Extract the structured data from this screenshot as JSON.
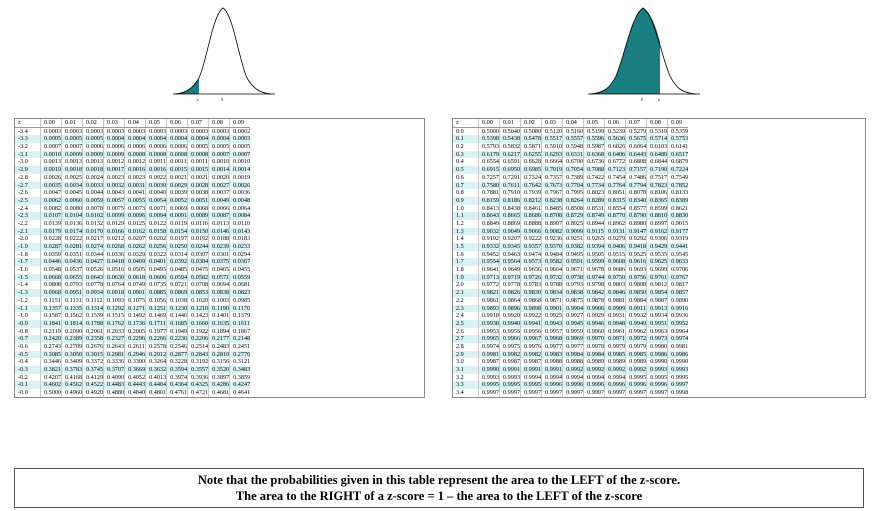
{
  "header_row": [
    "z",
    "0.00",
    "0.01",
    "0.02",
    "0.03",
    "0.04",
    "0.05",
    "0.06",
    "0.07",
    "0.08",
    "0.09"
  ],
  "curve_labels": {
    "left_z": "z",
    "left_zero": "0",
    "right_zero": "0",
    "right_z": "z"
  },
  "colors": {
    "fill": "#1a7d80",
    "row_shade": "#d8f3f5"
  },
  "left_table": [
    [
      "-3.4",
      "0.0003",
      "0.0003",
      "0.0003",
      "0.0003",
      "0.0003",
      "0.0003",
      "0.0003",
      "0.0003",
      "0.0003",
      "0.0002"
    ],
    [
      "-3.3",
      "0.0005",
      "0.0005",
      "0.0005",
      "0.0004",
      "0.0004",
      "0.0004",
      "0.0004",
      "0.0004",
      "0.0004",
      "0.0003"
    ],
    [
      "-3.2",
      "0.0007",
      "0.0007",
      "0.0006",
      "0.0006",
      "0.0006",
      "0.0006",
      "0.0006",
      "0.0005",
      "0.0005",
      "0.0005"
    ],
    [
      "-3.1",
      "0.0010",
      "0.0009",
      "0.0009",
      "0.0009",
      "0.0008",
      "0.0008",
      "0.0008",
      "0.0008",
      "0.0007",
      "0.0007"
    ],
    [
      "-3.0",
      "0.0013",
      "0.0013",
      "0.0013",
      "0.0012",
      "0.0012",
      "0.0011",
      "0.0011",
      "0.0011",
      "0.0010",
      "0.0010"
    ],
    [
      "-2.9",
      "0.0019",
      "0.0018",
      "0.0018",
      "0.0017",
      "0.0016",
      "0.0016",
      "0.0015",
      "0.0015",
      "0.0014",
      "0.0014"
    ],
    [
      "-2.8",
      "0.0026",
      "0.0025",
      "0.0024",
      "0.0023",
      "0.0023",
      "0.0022",
      "0.0021",
      "0.0021",
      "0.0020",
      "0.0019"
    ],
    [
      "-2.7",
      "0.0035",
      "0.0034",
      "0.0033",
      "0.0032",
      "0.0031",
      "0.0030",
      "0.0029",
      "0.0028",
      "0.0027",
      "0.0026"
    ],
    [
      "-2.6",
      "0.0047",
      "0.0045",
      "0.0044",
      "0.0043",
      "0.0041",
      "0.0040",
      "0.0039",
      "0.0038",
      "0.0037",
      "0.0036"
    ],
    [
      "-2.5",
      "0.0062",
      "0.0060",
      "0.0059",
      "0.0057",
      "0.0055",
      "0.0054",
      "0.0052",
      "0.0051",
      "0.0049",
      "0.0048"
    ],
    [
      "-2.4",
      "0.0082",
      "0.0080",
      "0.0078",
      "0.0075",
      "0.0073",
      "0.0071",
      "0.0069",
      "0.0068",
      "0.0066",
      "0.0064"
    ],
    [
      "-2.3",
      "0.0107",
      "0.0104",
      "0.0102",
      "0.0099",
      "0.0096",
      "0.0094",
      "0.0091",
      "0.0089",
      "0.0087",
      "0.0084"
    ],
    [
      "-2.2",
      "0.0139",
      "0.0136",
      "0.0132",
      "0.0129",
      "0.0125",
      "0.0122",
      "0.0119",
      "0.0116",
      "0.0113",
      "0.0110"
    ],
    [
      "-2.1",
      "0.0179",
      "0.0174",
      "0.0170",
      "0.0166",
      "0.0162",
      "0.0158",
      "0.0154",
      "0.0150",
      "0.0146",
      "0.0143"
    ],
    [
      "-2.0",
      "0.0228",
      "0.0222",
      "0.0217",
      "0.0212",
      "0.0207",
      "0.0202",
      "0.0197",
      "0.0192",
      "0.0188",
      "0.0183"
    ],
    [
      "-1.9",
      "0.0287",
      "0.0281",
      "0.0274",
      "0.0268",
      "0.0262",
      "0.0256",
      "0.0250",
      "0.0244",
      "0.0239",
      "0.0233"
    ],
    [
      "-1.8",
      "0.0359",
      "0.0351",
      "0.0344",
      "0.0336",
      "0.0329",
      "0.0322",
      "0.0314",
      "0.0307",
      "0.0301",
      "0.0294"
    ],
    [
      "-1.7",
      "0.0446",
      "0.0436",
      "0.0427",
      "0.0418",
      "0.0409",
      "0.0401",
      "0.0392",
      "0.0384",
      "0.0375",
      "0.0367"
    ],
    [
      "-1.6",
      "0.0548",
      "0.0537",
      "0.0526",
      "0.0516",
      "0.0505",
      "0.0495",
      "0.0485",
      "0.0475",
      "0.0465",
      "0.0455"
    ],
    [
      "-1.5",
      "0.0668",
      "0.0655",
      "0.0643",
      "0.0630",
      "0.0618",
      "0.0606",
      "0.0594",
      "0.0582",
      "0.0571",
      "0.0559"
    ],
    [
      "-1.4",
      "0.0808",
      "0.0793",
      "0.0778",
      "0.0764",
      "0.0749",
      "0.0735",
      "0.0721",
      "0.0708",
      "0.0694",
      "0.0681"
    ],
    [
      "-1.3",
      "0.0968",
      "0.0951",
      "0.0934",
      "0.0918",
      "0.0901",
      "0.0885",
      "0.0869",
      "0.0853",
      "0.0838",
      "0.0823"
    ],
    [
      "-1.2",
      "0.1151",
      "0.1131",
      "0.1112",
      "0.1093",
      "0.1075",
      "0.1056",
      "0.1038",
      "0.1020",
      "0.1003",
      "0.0985"
    ],
    [
      "-1.1",
      "0.1357",
      "0.1335",
      "0.1314",
      "0.1292",
      "0.1271",
      "0.1251",
      "0.1230",
      "0.1210",
      "0.1190",
      "0.1170"
    ],
    [
      "-1.0",
      "0.1587",
      "0.1562",
      "0.1539",
      "0.1515",
      "0.1492",
      "0.1469",
      "0.1446",
      "0.1423",
      "0.1401",
      "0.1379"
    ],
    [
      "-0.9",
      "0.1841",
      "0.1814",
      "0.1788",
      "0.1762",
      "0.1736",
      "0.1711",
      "0.1685",
      "0.1660",
      "0.1635",
      "0.1611"
    ],
    [
      "-0.8",
      "0.2119",
      "0.2090",
      "0.2061",
      "0.2033",
      "0.2005",
      "0.1977",
      "0.1949",
      "0.1922",
      "0.1894",
      "0.1867"
    ],
    [
      "-0.7",
      "0.2420",
      "0.2389",
      "0.2358",
      "0.2327",
      "0.2296",
      "0.2266",
      "0.2236",
      "0.2206",
      "0.2177",
      "0.2148"
    ],
    [
      "-0.6",
      "0.2743",
      "0.2709",
      "0.2676",
      "0.2643",
      "0.2611",
      "0.2578",
      "0.2546",
      "0.2514",
      "0.2483",
      "0.2451"
    ],
    [
      "-0.5",
      "0.3085",
      "0.3050",
      "0.3015",
      "0.2981",
      "0.2946",
      "0.2912",
      "0.2877",
      "0.2843",
      "0.2810",
      "0.2776"
    ],
    [
      "-0.4",
      "0.3446",
      "0.3409",
      "0.3372",
      "0.3336",
      "0.3300",
      "0.3264",
      "0.3228",
      "0.3192",
      "0.3156",
      "0.3121"
    ],
    [
      "-0.3",
      "0.3821",
      "0.3783",
      "0.3745",
      "0.3707",
      "0.3669",
      "0.3632",
      "0.3594",
      "0.3557",
      "0.3520",
      "0.3483"
    ],
    [
      "-0.2",
      "0.4207",
      "0.4168",
      "0.4129",
      "0.4090",
      "0.4052",
      "0.4013",
      "0.3974",
      "0.3936",
      "0.3897",
      "0.3859"
    ],
    [
      "-0.1",
      "0.4602",
      "0.4562",
      "0.4522",
      "0.4483",
      "0.4443",
      "0.4404",
      "0.4364",
      "0.4325",
      "0.4286",
      "0.4247"
    ],
    [
      "-0.0",
      "0.5000",
      "0.4960",
      "0.4920",
      "0.4880",
      "0.4840",
      "0.4801",
      "0.4761",
      "0.4721",
      "0.4681",
      "0.4641"
    ]
  ],
  "right_table": [
    [
      "0.0",
      "0.5000",
      "0.5040",
      "0.5080",
      "0.5120",
      "0.5160",
      "0.5199",
      "0.5239",
      "0.5279",
      "0.5319",
      "0.5359"
    ],
    [
      "0.1",
      "0.5398",
      "0.5438",
      "0.5478",
      "0.5517",
      "0.5557",
      "0.5596",
      "0.5636",
      "0.5675",
      "0.5714",
      "0.5753"
    ],
    [
      "0.2",
      "0.5793",
      "0.5832",
      "0.5871",
      "0.5910",
      "0.5948",
      "0.5987",
      "0.6026",
      "0.6064",
      "0.6103",
      "0.6141"
    ],
    [
      "0.3",
      "0.6179",
      "0.6217",
      "0.6255",
      "0.6293",
      "0.6331",
      "0.6368",
      "0.6406",
      "0.6443",
      "0.6480",
      "0.6517"
    ],
    [
      "0.4",
      "0.6554",
      "0.6591",
      "0.6628",
      "0.6664",
      "0.6700",
      "0.6736",
      "0.6772",
      "0.6808",
      "0.6844",
      "0.6879"
    ],
    [
      "0.5",
      "0.6915",
      "0.6950",
      "0.6985",
      "0.7019",
      "0.7054",
      "0.7088",
      "0.7123",
      "0.7157",
      "0.7190",
      "0.7224"
    ],
    [
      "0.6",
      "0.7257",
      "0.7291",
      "0.7324",
      "0.7357",
      "0.7389",
      "0.7422",
      "0.7454",
      "0.7486",
      "0.7517",
      "0.7549"
    ],
    [
      "0.7",
      "0.7580",
      "0.7611",
      "0.7642",
      "0.7673",
      "0.7704",
      "0.7734",
      "0.7764",
      "0.7794",
      "0.7823",
      "0.7852"
    ],
    [
      "0.8",
      "0.7881",
      "0.7910",
      "0.7939",
      "0.7967",
      "0.7995",
      "0.8023",
      "0.8051",
      "0.8078",
      "0.8106",
      "0.8133"
    ],
    [
      "0.9",
      "0.8159",
      "0.8186",
      "0.8212",
      "0.8238",
      "0.8264",
      "0.8289",
      "0.8315",
      "0.8340",
      "0.8365",
      "0.8389"
    ],
    [
      "1.0",
      "0.8413",
      "0.8438",
      "0.8461",
      "0.8485",
      "0.8508",
      "0.8531",
      "0.8554",
      "0.8577",
      "0.8599",
      "0.8621"
    ],
    [
      "1.1",
      "0.8643",
      "0.8665",
      "0.8686",
      "0.8708",
      "0.8729",
      "0.8749",
      "0.8770",
      "0.8790",
      "0.8810",
      "0.8830"
    ],
    [
      "1.2",
      "0.8849",
      "0.8869",
      "0.8888",
      "0.8907",
      "0.8925",
      "0.8944",
      "0.8962",
      "0.8980",
      "0.8997",
      "0.9015"
    ],
    [
      "1.3",
      "0.9032",
      "0.9049",
      "0.9066",
      "0.9082",
      "0.9099",
      "0.9115",
      "0.9131",
      "0.9147",
      "0.9162",
      "0.9177"
    ],
    [
      "1.4",
      "0.9192",
      "0.9207",
      "0.9222",
      "0.9236",
      "0.9251",
      "0.9265",
      "0.9279",
      "0.9292",
      "0.9306",
      "0.9319"
    ],
    [
      "1.5",
      "0.9332",
      "0.9345",
      "0.9357",
      "0.9370",
      "0.9382",
      "0.9394",
      "0.9406",
      "0.9418",
      "0.9429",
      "0.9441"
    ],
    [
      "1.6",
      "0.9452",
      "0.9463",
      "0.9474",
      "0.9484",
      "0.9495",
      "0.9505",
      "0.9515",
      "0.9525",
      "0.9535",
      "0.9545"
    ],
    [
      "1.7",
      "0.9554",
      "0.9564",
      "0.9573",
      "0.9582",
      "0.9591",
      "0.9599",
      "0.9608",
      "0.9616",
      "0.9625",
      "0.9633"
    ],
    [
      "1.8",
      "0.9641",
      "0.9649",
      "0.9656",
      "0.9664",
      "0.9671",
      "0.9678",
      "0.9686",
      "0.9693",
      "0.9699",
      "0.9706"
    ],
    [
      "1.9",
      "0.9713",
      "0.9719",
      "0.9726",
      "0.9732",
      "0.9738",
      "0.9744",
      "0.9750",
      "0.9756",
      "0.9761",
      "0.9767"
    ],
    [
      "2.0",
      "0.9772",
      "0.9778",
      "0.9783",
      "0.9788",
      "0.9793",
      "0.9798",
      "0.9803",
      "0.9808",
      "0.9812",
      "0.9817"
    ],
    [
      "2.1",
      "0.9821",
      "0.9826",
      "0.9830",
      "0.9834",
      "0.9838",
      "0.9842",
      "0.9846",
      "0.9850",
      "0.9854",
      "0.9857"
    ],
    [
      "2.2",
      "0.9861",
      "0.9864",
      "0.9868",
      "0.9871",
      "0.9875",
      "0.9878",
      "0.9881",
      "0.9884",
      "0.9887",
      "0.9890"
    ],
    [
      "2.3",
      "0.9893",
      "0.9896",
      "0.9898",
      "0.9901",
      "0.9904",
      "0.9906",
      "0.9909",
      "0.9911",
      "0.9913",
      "0.9916"
    ],
    [
      "2.4",
      "0.9918",
      "0.9920",
      "0.9922",
      "0.9925",
      "0.9927",
      "0.9929",
      "0.9931",
      "0.9932",
      "0.9934",
      "0.9936"
    ],
    [
      "2.5",
      "0.9938",
      "0.9940",
      "0.9941",
      "0.9943",
      "0.9945",
      "0.9946",
      "0.9948",
      "0.9949",
      "0.9951",
      "0.9952"
    ],
    [
      "2.6",
      "0.9953",
      "0.9955",
      "0.9956",
      "0.9957",
      "0.9959",
      "0.9960",
      "0.9961",
      "0.9962",
      "0.9963",
      "0.9964"
    ],
    [
      "2.7",
      "0.9965",
      "0.9966",
      "0.9967",
      "0.9968",
      "0.9969",
      "0.9970",
      "0.9971",
      "0.9972",
      "0.9973",
      "0.9974"
    ],
    [
      "2.8",
      "0.9974",
      "0.9975",
      "0.9976",
      "0.9977",
      "0.9977",
      "0.9978",
      "0.9979",
      "0.9979",
      "0.9980",
      "0.9981"
    ],
    [
      "2.9",
      "0.9981",
      "0.9982",
      "0.9982",
      "0.9983",
      "0.9984",
      "0.9984",
      "0.9985",
      "0.9985",
      "0.9986",
      "0.9986"
    ],
    [
      "3.0",
      "0.9987",
      "0.9987",
      "0.9987",
      "0.9988",
      "0.9988",
      "0.9989",
      "0.9989",
      "0.9989",
      "0.9990",
      "0.9990"
    ],
    [
      "3.1",
      "0.9990",
      "0.9991",
      "0.9991",
      "0.9991",
      "0.9992",
      "0.9992",
      "0.9992",
      "0.9992",
      "0.9993",
      "0.9993"
    ],
    [
      "3.2",
      "0.9993",
      "0.9993",
      "0.9994",
      "0.9994",
      "0.9994",
      "0.9994",
      "0.9994",
      "0.9995",
      "0.9995",
      "0.9995"
    ],
    [
      "3.3",
      "0.9995",
      "0.9995",
      "0.9995",
      "0.9996",
      "0.9996",
      "0.9996",
      "0.9996",
      "0.9996",
      "0.9996",
      "0.9997"
    ],
    [
      "3.4",
      "0.9997",
      "0.9997",
      "0.9997",
      "0.9997",
      "0.9997",
      "0.9997",
      "0.9997",
      "0.9997",
      "0.9997",
      "0.9998"
    ]
  ],
  "note": {
    "line1": "Note that the probabilities given in this table represent the area to the  LEFT of the z-score.",
    "line2": "The area to the RIGHT of a z-score = 1 – the area to the LEFT of the z-score"
  }
}
